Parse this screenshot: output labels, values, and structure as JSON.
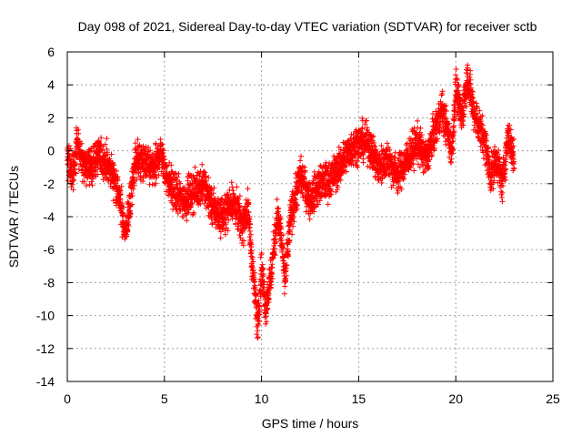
{
  "chart_data": {
    "type": "scatter",
    "title": "Day 098 of 2021, Sidereal Day-to-day VTEC variation (SDTVAR) for receiver sctb",
    "xlabel": "GPS time / hours",
    "ylabel": "SDTVAR / TECUs",
    "xlim": [
      0,
      25
    ],
    "ylim": [
      -14,
      6
    ],
    "xticks": [
      0,
      5,
      10,
      15,
      20,
      25
    ],
    "yticks": [
      -14,
      -12,
      -10,
      -8,
      -6,
      -4,
      -2,
      0,
      2,
      4,
      6
    ],
    "xtick_labels": [
      "0",
      "5",
      "10",
      "15",
      "20",
      "25"
    ],
    "ytick_labels": [
      "-14",
      "-12",
      "-10",
      "-8",
      "-6",
      "-4",
      "-2",
      "0",
      "2",
      "4",
      "6"
    ],
    "grid": true,
    "marker": "+",
    "color": "#ff0000",
    "series": [
      {
        "name": "SDTVAR",
        "trend": {
          "x": [
            0.0,
            0.3,
            0.5,
            0.8,
            1.2,
            1.6,
            2.0,
            2.4,
            2.7,
            3.0,
            3.2,
            3.5,
            4.0,
            4.5,
            4.8,
            5.1,
            5.5,
            6.0,
            6.5,
            7.0,
            7.5,
            8.0,
            8.5,
            9.0,
            9.3,
            9.6,
            9.8,
            10.0,
            10.2,
            10.5,
            10.8,
            11.0,
            11.2,
            11.5,
            12.0,
            12.5,
            13.0,
            13.5,
            14.0,
            14.5,
            15.0,
            15.5,
            16.0,
            16.5,
            17.0,
            17.5,
            18.0,
            18.5,
            19.0,
            19.3,
            19.5,
            19.8,
            20.0,
            20.3,
            20.6,
            20.9,
            21.2,
            21.5,
            21.8,
            22.1,
            22.4,
            22.7,
            23.0
          ],
          "y": [
            -0.5,
            -1.5,
            0.5,
            -0.8,
            -1.0,
            -0.3,
            -0.8,
            -1.5,
            -3.0,
            -5.0,
            -3.5,
            -0.5,
            -0.8,
            -1.2,
            0.0,
            -1.5,
            -2.5,
            -3.0,
            -2.5,
            -2.0,
            -3.5,
            -4.0,
            -3.0,
            -4.5,
            -3.5,
            -8.0,
            -10.5,
            -7.0,
            -9.5,
            -7.5,
            -4.0,
            -5.0,
            -8.0,
            -4.0,
            -1.5,
            -3.0,
            -2.0,
            -1.8,
            -1.0,
            0.0,
            0.5,
            0.5,
            -1.0,
            -0.5,
            -1.5,
            -0.5,
            0.5,
            -0.5,
            1.5,
            2.5,
            1.5,
            0.0,
            3.8,
            2.0,
            4.5,
            2.5,
            1.5,
            0.5,
            -1.5,
            -0.5,
            -2.0,
            1.0,
            -0.5
          ]
        },
        "noise_amplitude": 0.9,
        "points_per_hour": 180,
        "seed": 98
      }
    ]
  }
}
